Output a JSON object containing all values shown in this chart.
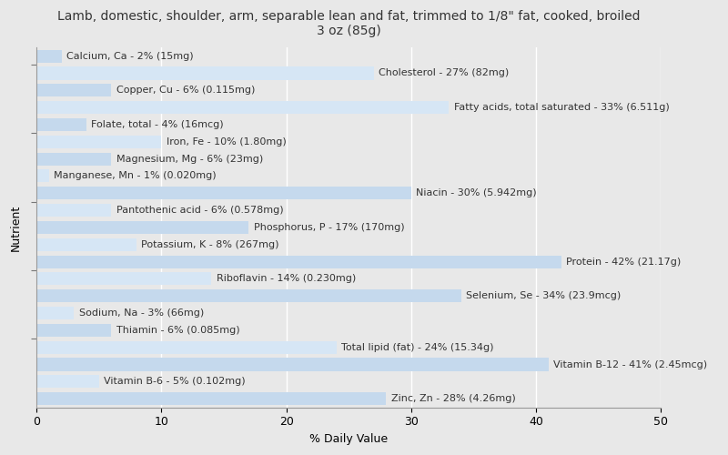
{
  "title": "Lamb, domestic, shoulder, arm, separable lean and fat, trimmed to 1/8\" fat, cooked, broiled\n3 oz (85g)",
  "xlabel": "% Daily Value",
  "ylabel": "Nutrient",
  "nutrients": [
    {
      "label": "Calcium, Ca - 2% (15mg)",
      "value": 2
    },
    {
      "label": "Cholesterol - 27% (82mg)",
      "value": 27
    },
    {
      "label": "Copper, Cu - 6% (0.115mg)",
      "value": 6
    },
    {
      "label": "Fatty acids, total saturated - 33% (6.511g)",
      "value": 33
    },
    {
      "label": "Folate, total - 4% (16mcg)",
      "value": 4
    },
    {
      "label": "Iron, Fe - 10% (1.80mg)",
      "value": 10
    },
    {
      "label": "Magnesium, Mg - 6% (23mg)",
      "value": 6
    },
    {
      "label": "Manganese, Mn - 1% (0.020mg)",
      "value": 1
    },
    {
      "label": "Niacin - 30% (5.942mg)",
      "value": 30
    },
    {
      "label": "Pantothenic acid - 6% (0.578mg)",
      "value": 6
    },
    {
      "label": "Phosphorus, P - 17% (170mg)",
      "value": 17
    },
    {
      "label": "Potassium, K - 8% (267mg)",
      "value": 8
    },
    {
      "label": "Protein - 42% (21.17g)",
      "value": 42
    },
    {
      "label": "Riboflavin - 14% (0.230mg)",
      "value": 14
    },
    {
      "label": "Selenium, Se - 34% (23.9mcg)",
      "value": 34
    },
    {
      "label": "Sodium, Na - 3% (66mg)",
      "value": 3
    },
    {
      "label": "Thiamin - 6% (0.085mg)",
      "value": 6
    },
    {
      "label": "Total lipid (fat) - 24% (15.34g)",
      "value": 24
    },
    {
      "label": "Vitamin B-12 - 41% (2.45mcg)",
      "value": 41
    },
    {
      "label": "Vitamin B-6 - 5% (0.102mg)",
      "value": 5
    },
    {
      "label": "Zinc, Zn - 28% (4.26mg)",
      "value": 28
    }
  ],
  "bar_color_even": "#c5d9ed",
  "bar_color_odd": "#d6e6f5",
  "text_color": "#333333",
  "background_color": "#e8e8e8",
  "plot_background": "#e8e8e8",
  "xlim": [
    0,
    50
  ],
  "title_fontsize": 10,
  "label_fontsize": 8,
  "axis_fontsize": 9,
  "bar_height": 0.75
}
